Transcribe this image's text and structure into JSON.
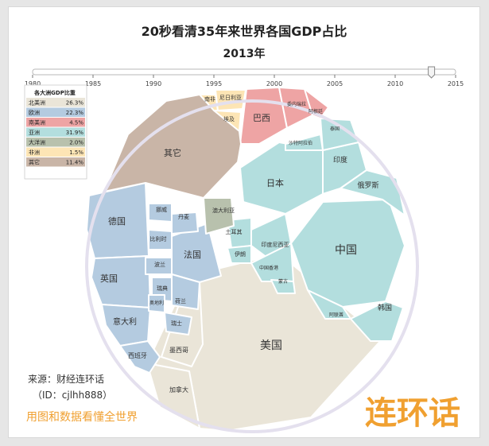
{
  "chart_data": {
    "type": "voronoi-treemap",
    "title": "20秒看清35年来世界各国GDP占比",
    "subtitle": "2013年",
    "timeline": {
      "ticks": [
        "1980",
        "1985",
        "1990",
        "1995",
        "2000",
        "2005",
        "2010",
        "2015"
      ],
      "current": 2013,
      "range": [
        1980,
        2015
      ]
    },
    "legend": {
      "title": "各大洲GDP比重",
      "entries": [
        {
          "name": "北美洲",
          "value": "26.3%",
          "color": "#eae5d8"
        },
        {
          "name": "欧洲",
          "value": "22.3%",
          "color": "#b4cbe0"
        },
        {
          "name": "南美洲",
          "value": "4.5%",
          "color": "#eea4a4"
        },
        {
          "name": "亚洲",
          "value": "31.9%",
          "color": "#b3dede"
        },
        {
          "name": "大洋洲",
          "value": "2.0%",
          "color": "#b8c1ad"
        },
        {
          "name": "非洲",
          "value": "1.5%",
          "color": "#fde5b5"
        },
        {
          "name": "其它",
          "value": "11.4%",
          "color": "#c9b5a7"
        }
      ]
    },
    "regions": [
      {
        "name": "美国",
        "continent": "北美洲"
      },
      {
        "name": "加拿大",
        "continent": "北美洲"
      },
      {
        "name": "墨西哥",
        "continent": "北美洲"
      },
      {
        "name": "德国",
        "continent": "欧洲"
      },
      {
        "name": "法国",
        "continent": "欧洲"
      },
      {
        "name": "英国",
        "continent": "欧洲"
      },
      {
        "name": "意大利",
        "continent": "欧洲"
      },
      {
        "name": "西班牙",
        "continent": "欧洲"
      },
      {
        "name": "荷兰",
        "continent": "欧洲"
      },
      {
        "name": "瑞士",
        "continent": "欧洲"
      },
      {
        "name": "瑞典",
        "continent": "欧洲"
      },
      {
        "name": "比利时",
        "continent": "欧洲"
      },
      {
        "name": "挪威",
        "continent": "欧洲"
      },
      {
        "name": "波兰",
        "continent": "欧洲"
      },
      {
        "name": "奥地利",
        "continent": "欧洲"
      },
      {
        "name": "丹麦",
        "continent": "欧洲"
      },
      {
        "name": "巴西",
        "continent": "南美洲"
      },
      {
        "name": "委内瑞拉",
        "continent": "南美洲"
      },
      {
        "name": "阿根廷",
        "continent": "南美洲"
      },
      {
        "name": "中国",
        "continent": "亚洲"
      },
      {
        "name": "日本",
        "continent": "亚洲"
      },
      {
        "name": "印度",
        "continent": "亚洲"
      },
      {
        "name": "俄罗斯",
        "continent": "亚洲"
      },
      {
        "name": "韩国",
        "continent": "亚洲"
      },
      {
        "name": "印度尼西亚",
        "continent": "亚洲"
      },
      {
        "name": "土耳其",
        "continent": "亚洲"
      },
      {
        "name": "沙特阿拉伯",
        "continent": "亚洲"
      },
      {
        "name": "伊朗",
        "continent": "亚洲"
      },
      {
        "name": "泰国",
        "continent": "亚洲"
      },
      {
        "name": "中国香港",
        "continent": "亚洲"
      },
      {
        "name": "蒙古",
        "continent": "亚洲"
      },
      {
        "name": "阿联酋",
        "continent": "亚洲"
      },
      {
        "name": "澳大利亚",
        "continent": "大洋洲"
      },
      {
        "name": "南非",
        "continent": "非洲"
      },
      {
        "name": "尼日利亚",
        "continent": "非洲"
      },
      {
        "name": "埃及",
        "continent": "非洲"
      },
      {
        "name": "其它",
        "continent": "其它"
      }
    ]
  },
  "footer": {
    "source": "来源：财经连环话",
    "id": "（ID：cjlhh888）",
    "slogan": "用图和数据看懂全世界",
    "logo_text": "连环话"
  },
  "colors": {
    "border": "#e4e0ee",
    "logo": "#f0a030"
  }
}
